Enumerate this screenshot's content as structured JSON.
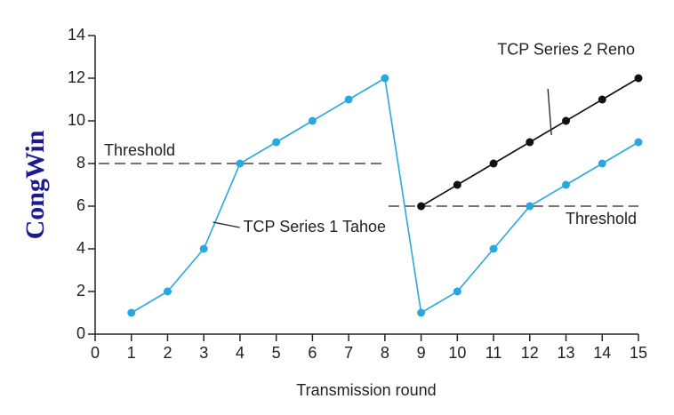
{
  "chart_data": {
    "type": "line",
    "x_label": "Transmission round",
    "y_label": "CongWin",
    "x": [
      1,
      2,
      3,
      4,
      5,
      6,
      7,
      8,
      9,
      10,
      11,
      12,
      13,
      14,
      15
    ],
    "series": [
      {
        "name": "TCP Series 1 Tahoe",
        "color": "#29a8e0",
        "values": [
          1,
          2,
          4,
          8,
          9,
          10,
          11,
          12,
          1,
          2,
          4,
          6,
          7,
          8,
          9
        ]
      },
      {
        "name": "TCP Series 2 Reno",
        "color": "#111111",
        "values": [
          null,
          null,
          null,
          null,
          null,
          null,
          null,
          null,
          6,
          7,
          8,
          9,
          10,
          11,
          12
        ]
      }
    ],
    "thresholds": [
      {
        "text": "Threshold",
        "value": 8,
        "x_range": [
          0,
          8
        ]
      },
      {
        "text": "Threshold",
        "value": 6,
        "x_range": [
          8,
          15
        ]
      }
    ],
    "xlim": [
      0,
      15
    ],
    "xticks": [
      0,
      1,
      2,
      3,
      4,
      5,
      6,
      7,
      8,
      9,
      10,
      11,
      12,
      13,
      14,
      15
    ],
    "ylim": [
      0,
      14
    ],
    "yticks": [
      0,
      2,
      4,
      6,
      8,
      10,
      12,
      14
    ]
  }
}
